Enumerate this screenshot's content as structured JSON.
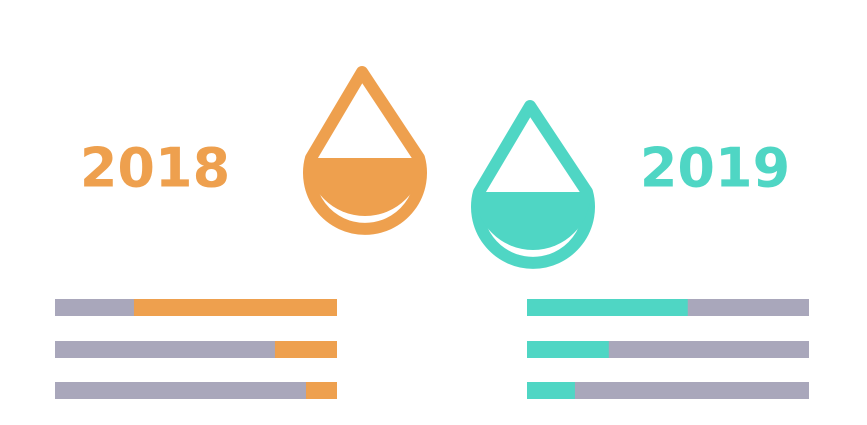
{
  "chart_data": [
    {
      "type": "bar",
      "title": "2018",
      "color": "#eea04e",
      "track_color": "#a9a7bb",
      "align": "right",
      "xlim": [
        0,
        100
      ],
      "values": [
        72,
        22,
        11
      ]
    },
    {
      "type": "bar",
      "title": "2019",
      "color": "#4fd6c4",
      "track_color": "#a9a7bb",
      "align": "left",
      "xlim": [
        0,
        100
      ],
      "values": [
        57,
        29,
        17
      ]
    }
  ]
}
